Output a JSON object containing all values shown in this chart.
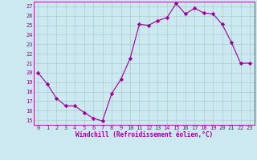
{
  "x": [
    0,
    1,
    2,
    3,
    4,
    5,
    6,
    7,
    8,
    9,
    10,
    11,
    12,
    13,
    14,
    15,
    16,
    17,
    18,
    19,
    20,
    21,
    22,
    23
  ],
  "y": [
    20.0,
    18.8,
    17.3,
    16.5,
    16.5,
    15.8,
    15.2,
    14.9,
    17.8,
    19.3,
    21.5,
    25.1,
    25.0,
    25.5,
    25.8,
    27.3,
    26.2,
    26.8,
    26.3,
    26.2,
    25.1,
    23.2,
    21.0,
    21.0
  ],
  "line_color": "#990099",
  "marker": "D",
  "marker_size": 2.2,
  "bg_color": "#cce8f0",
  "grid_color": "#aacccc",
  "xlabel": "Windchill (Refroidissement éolien,°C)",
  "xtick_labels": [
    "0",
    "1",
    "2",
    "3",
    "4",
    "5",
    "6",
    "7",
    "8",
    "9",
    "10",
    "11",
    "12",
    "13",
    "14",
    "15",
    "16",
    "17",
    "18",
    "19",
    "20",
    "21",
    "22",
    "23"
  ],
  "ylabel_ticks": [
    15,
    16,
    17,
    18,
    19,
    20,
    21,
    22,
    23,
    24,
    25,
    26,
    27
  ],
  "xlim": [
    -0.5,
    23.5
  ],
  "ylim": [
    14.5,
    27.5
  ],
  "tick_fontsize": 5.0,
  "xlabel_fontsize": 5.5
}
